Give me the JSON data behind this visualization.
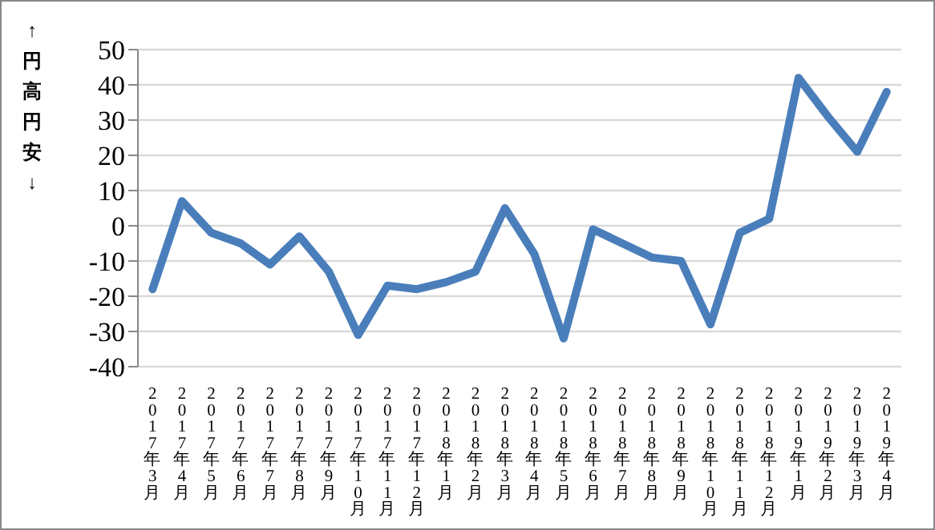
{
  "chart_data": {
    "type": "line",
    "ylabel": "↑円高円安↓",
    "categories": [
      "2017年3月",
      "2017年4月",
      "2017年5月",
      "2017年6月",
      "2017年7月",
      "2017年8月",
      "2017年9月",
      "2017年10月",
      "2017年11月",
      "2017年12月",
      "2018年1月",
      "2018年2月",
      "2018年3月",
      "2018年4月",
      "2018年5月",
      "2018年6月",
      "2018年7月",
      "2018年8月",
      "2018年9月",
      "2018年10月",
      "2018年11月",
      "2018年12月",
      "2019年1月",
      "2019年2月",
      "2019年3月",
      "2019年4月"
    ],
    "series": [
      {
        "color": "#4a7ebb",
        "values": [
          -18,
          7,
          -2,
          -5,
          -11,
          -3,
          -13,
          -31,
          -17,
          -18,
          -16,
          -13,
          5,
          -8,
          -32,
          -1,
          -5,
          -9,
          -10,
          -28,
          -2,
          2,
          42,
          31,
          21,
          38
        ]
      }
    ],
    "ylim": [
      -40,
      50
    ],
    "yticks": [
      -40,
      -30,
      -20,
      -10,
      0,
      10,
      20,
      30,
      40,
      50
    ],
    "grid": "y",
    "marker": "none",
    "line_style": "solid",
    "legend": false
  }
}
